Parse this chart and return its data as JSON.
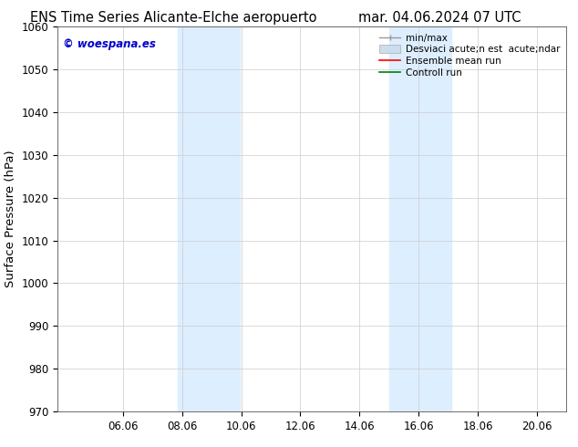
{
  "title_left": "ENS Time Series Alicante-Elche aeropuerto",
  "title_right": "mar. 04.06.2024 07 UTC",
  "ylabel": "Surface Pressure (hPa)",
  "ylim": [
    970,
    1060
  ],
  "yticks": [
    970,
    980,
    990,
    1000,
    1010,
    1020,
    1030,
    1040,
    1050,
    1060
  ],
  "xtick_labels": [
    "06.06",
    "08.06",
    "10.06",
    "12.06",
    "14.06",
    "16.06",
    "18.06",
    "20.06"
  ],
  "xtick_positions": [
    2,
    4,
    6,
    8,
    10,
    12,
    14,
    16
  ],
  "xlim": [
    -0.2,
    17.0
  ],
  "shaded_bands": [
    {
      "x_start": 3.85,
      "x_end": 5.95,
      "color": "#ddeeff"
    },
    {
      "x_start": 11.0,
      "x_end": 13.1,
      "color": "#ddeeff"
    }
  ],
  "watermark_text": "© woespana.es",
  "watermark_color": "#0000cc",
  "legend_label_1": "min/max",
  "legend_label_2": "Desviaci acute;n est  acute;ndar",
  "legend_label_3": "Ensemble mean run",
  "legend_label_4": "Controll run",
  "legend_color_1": "#999999",
  "legend_color_2": "#ccdded",
  "legend_color_3": "red",
  "legend_color_4": "green",
  "bg_color": "#ffffff",
  "grid_color": "#cccccc",
  "title_fontsize": 10.5,
  "ylabel_fontsize": 9.5,
  "tick_fontsize": 8.5,
  "watermark_fontsize": 8.5,
  "legend_fontsize": 7.5
}
